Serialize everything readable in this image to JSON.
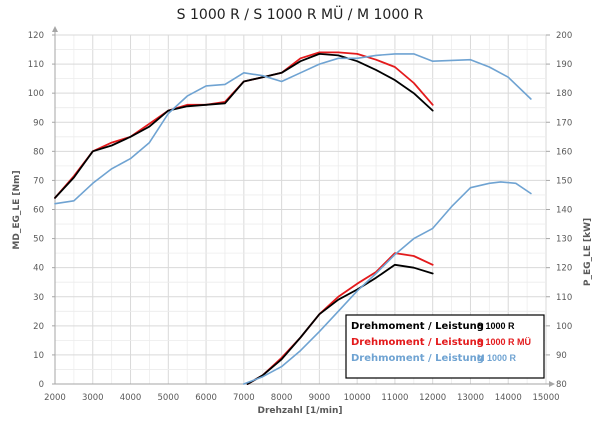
{
  "chart_data": {
    "type": "line",
    "title": "S 1000 R / S 1000 R MÜ / M 1000 R",
    "xlabel": "Drehzahl [1/min]",
    "ylabel_left": "MD_EG_LE [Nm]",
    "ylabel_right": "P_EG_LE [kW]",
    "xlim": [
      2000,
      15000
    ],
    "ylim_left": [
      0,
      120
    ],
    "ylim_right": [
      80,
      200
    ],
    "x_ticks": [
      "2000",
      "3000",
      "4000",
      "5000",
      "6000",
      "7000",
      "8000",
      "9000",
      "10000",
      "11000",
      "12000",
      "13000",
      "14000",
      "15000"
    ],
    "y_left_ticks": [
      "0",
      "10",
      "20",
      "30",
      "40",
      "50",
      "60",
      "70",
      "80",
      "90",
      "100",
      "110",
      "120"
    ],
    "y_right_ticks": [
      "80",
      "90",
      "100",
      "110",
      "120",
      "130",
      "140",
      "150",
      "160",
      "170",
      "180",
      "190",
      "200"
    ],
    "grid": true,
    "legend_position": "bottom-right",
    "legend": [
      {
        "prefix": "Drehmoment / Leistung",
        "model": "S 1000 R",
        "color": "#000000"
      },
      {
        "prefix": "Drehmoment / Leistung",
        "model": "S 1000 R MÜ",
        "color": "#e31a1c"
      },
      {
        "prefix": "Drehmoment / Leistung",
        "model": "M 1000 R",
        "color": "#6fa3d2"
      }
    ],
    "series": [
      {
        "name": "S 1000 R MÜ Drehmoment",
        "axis": "left",
        "color": "#e31a1c",
        "x": [
          2000,
          2500,
          3000,
          3500,
          4000,
          4500,
          5000,
          5500,
          6000,
          6500,
          7000,
          7500,
          8000,
          8500,
          9000,
          9500,
          10000,
          10500,
          11000,
          11500,
          12000
        ],
        "y": [
          64,
          71.5,
          80,
          83,
          85,
          89.5,
          94,
          96,
          96,
          97,
          104,
          105.5,
          107,
          112,
          114,
          114,
          113.5,
          111.5,
          109,
          103.5,
          96
        ]
      },
      {
        "name": "S 1000 R Drehmoment",
        "axis": "left",
        "color": "#000000",
        "x": [
          2000,
          2500,
          3000,
          3500,
          4000,
          4500,
          5000,
          5500,
          6000,
          6500,
          7000,
          7500,
          8000,
          8500,
          9000,
          9500,
          10000,
          10500,
          11000,
          11500,
          12000
        ],
        "y": [
          64,
          71,
          80,
          82,
          85,
          88.5,
          94,
          95.5,
          96,
          96.5,
          104,
          105.5,
          107,
          111,
          113.5,
          113,
          111,
          108,
          104.5,
          100,
          94
        ]
      },
      {
        "name": "M 1000 R Drehmoment",
        "axis": "left",
        "color": "#6fa3d2",
        "x": [
          2000,
          2500,
          3000,
          3500,
          4000,
          4500,
          5000,
          5500,
          6000,
          6500,
          7000,
          7500,
          8000,
          8500,
          9000,
          9500,
          10000,
          10500,
          11000,
          11500,
          12000,
          13000,
          13500,
          14000,
          14600
        ],
        "y": [
          62,
          63,
          69,
          74,
          77.5,
          83,
          93,
          99,
          102.5,
          103,
          107,
          106,
          104,
          107,
          110,
          112,
          112,
          113,
          113.5,
          113.5,
          111,
          111.5,
          109,
          105.5,
          98
        ]
      },
      {
        "name": "S 1000 R MÜ Leistung",
        "axis": "right",
        "color": "#e31a1c",
        "x": [
          7100,
          7500,
          8000,
          8500,
          9000,
          9500,
          10000,
          10500,
          11000,
          11500,
          12000
        ],
        "y": [
          80,
          83,
          89,
          96,
          104,
          110,
          114.5,
          118.5,
          125,
          124,
          121
        ]
      },
      {
        "name": "S 1000 R Leistung",
        "axis": "right",
        "color": "#000000",
        "x": [
          7100,
          7500,
          8000,
          8500,
          9000,
          9500,
          10000,
          10500,
          11000,
          11500,
          12000
        ],
        "y": [
          80,
          83,
          88.5,
          96,
          104,
          109,
          112.5,
          116.5,
          121,
          120,
          118
        ]
      },
      {
        "name": "M 1000 R Leistung",
        "axis": "right",
        "color": "#6fa3d2",
        "x": [
          7000,
          7500,
          8000,
          8500,
          9000,
          9500,
          10000,
          10500,
          11000,
          11500,
          12000,
          12500,
          13000,
          13500,
          13800,
          14200,
          14600
        ],
        "y": [
          80,
          82.5,
          86,
          91.5,
          98,
          105,
          112,
          118,
          124.5,
          130,
          133.5,
          141,
          147.5,
          149,
          149.5,
          149,
          145.5
        ]
      }
    ]
  }
}
